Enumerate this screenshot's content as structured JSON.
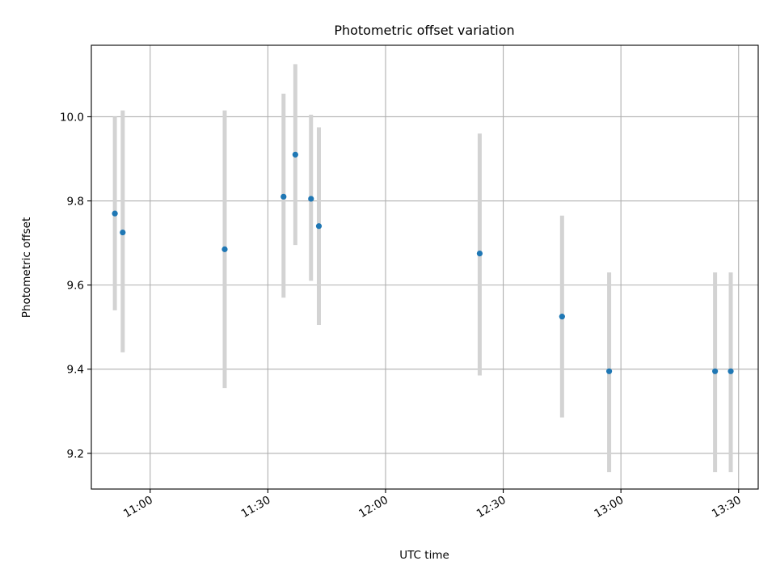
{
  "chart_data": {
    "type": "scatter",
    "title": "Photometric offset variation",
    "xlabel": "UTC time",
    "ylabel": "Photometric offset",
    "x_type": "time",
    "xlim": [
      "10:45",
      "13:35"
    ],
    "ylim": [
      9.115,
      10.17
    ],
    "x_ticks": [
      "11:00",
      "11:30",
      "12:00",
      "12:30",
      "13:00",
      "13:30"
    ],
    "y_ticks": [
      "9.2",
      "9.4",
      "9.6",
      "9.8",
      "10.0"
    ],
    "grid": true,
    "colors": {
      "point": "#1f77b4",
      "error_bar": "#d3d3d3"
    },
    "points": [
      {
        "x": "10:51",
        "y": 9.77,
        "y_low": 9.54,
        "y_high": 10.0
      },
      {
        "x": "10:53",
        "y": 9.725,
        "y_low": 9.44,
        "y_high": 10.015
      },
      {
        "x": "11:19",
        "y": 9.685,
        "y_low": 9.355,
        "y_high": 10.015
      },
      {
        "x": "11:34",
        "y": 9.81,
        "y_low": 9.57,
        "y_high": 10.055
      },
      {
        "x": "11:37",
        "y": 9.91,
        "y_low": 9.695,
        "y_high": 10.125
      },
      {
        "x": "11:41",
        "y": 9.805,
        "y_low": 9.61,
        "y_high": 10.005
      },
      {
        "x": "11:43",
        "y": 9.74,
        "y_low": 9.505,
        "y_high": 9.975
      },
      {
        "x": "12:24",
        "y": 9.675,
        "y_low": 9.385,
        "y_high": 9.96
      },
      {
        "x": "12:45",
        "y": 9.525,
        "y_low": 9.285,
        "y_high": 9.765
      },
      {
        "x": "12:57",
        "y": 9.395,
        "y_low": 9.155,
        "y_high": 9.63
      },
      {
        "x": "13:24",
        "y": 9.395,
        "y_low": 9.155,
        "y_high": 9.63
      },
      {
        "x": "13:28",
        "y": 9.395,
        "y_low": 9.155,
        "y_high": 9.63
      }
    ]
  }
}
